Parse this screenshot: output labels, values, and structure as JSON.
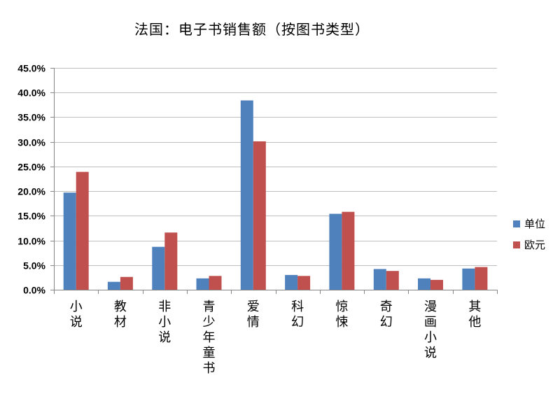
{
  "chart_data": {
    "type": "bar",
    "title": "法国：电子书销售额（按图书类型）",
    "xlabel": "",
    "ylabel": "",
    "ylim": [
      0,
      45
    ],
    "ytick_step": 5,
    "ytick_labels": [
      "0.0%",
      "5.0%",
      "10.0%",
      "15.0%",
      "20.0%",
      "25.0%",
      "30.0%",
      "35.0%",
      "40.0%",
      "45.0%"
    ],
    "grid": true,
    "legend_position": "right",
    "categories": [
      "小说",
      "教材",
      "非小说",
      "青少年童书",
      "爱情",
      "科幻",
      "惊悚",
      "奇幻",
      "漫画小说",
      "其他"
    ],
    "series": [
      {
        "name": "单位",
        "color": "#4F81BD",
        "values": [
          19.7,
          1.6,
          8.7,
          2.3,
          38.4,
          3.0,
          15.4,
          4.2,
          2.3,
          4.3
        ]
      },
      {
        "name": "欧元",
        "color": "#C0504D",
        "values": [
          23.9,
          2.6,
          11.6,
          2.8,
          30.1,
          2.8,
          15.8,
          3.8,
          2.0,
          4.6
        ]
      }
    ]
  }
}
